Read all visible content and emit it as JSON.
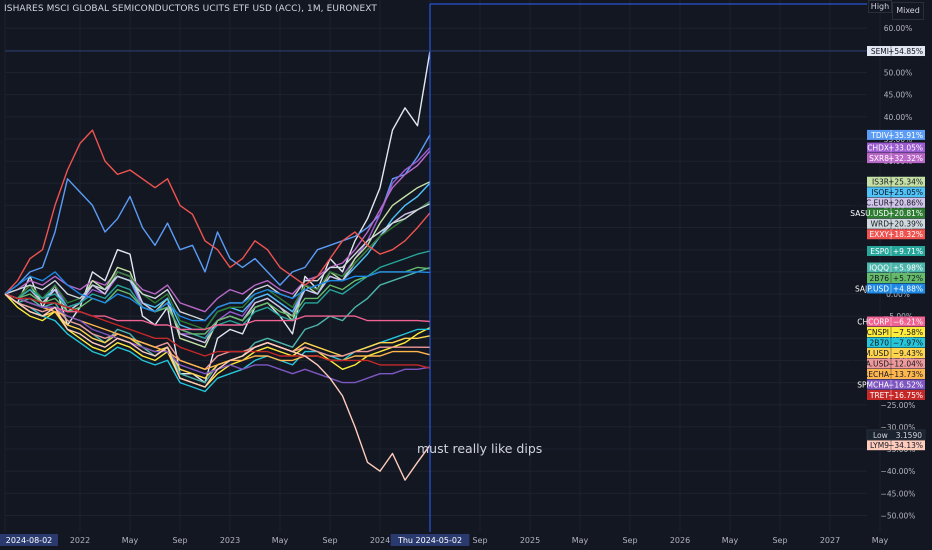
{
  "header": {
    "title": "ISHARES MSCI GLOBAL SEMICONDUCTORS UCITS ETF USD (ACC), 1M, EURONEXT",
    "high_label": "High",
    "mixed_label": "Mixed"
  },
  "annotation": "must really like dips",
  "colors": {
    "background": "#131722",
    "grid": "#1e222d",
    "axis_text": "#b2b5be",
    "crosshair": "#2962ff"
  },
  "chart_data": {
    "type": "line",
    "title": "ISHARES MSCI GLOBAL SEMICONDUCTORS UCITS ETF USD (ACC), 1M, EURONEXT",
    "ylabel": "",
    "xlabel": "",
    "ylim": [
      -52,
      65
    ],
    "x_tick_labels": [
      {
        "label": "2024-08-02",
        "i": 0,
        "highlight": true
      },
      {
        "label": "2022",
        "i": 6
      },
      {
        "label": "May",
        "i": 10
      },
      {
        "label": "Sep",
        "i": 14
      },
      {
        "label": "2023",
        "i": 18
      },
      {
        "label": "May",
        "i": 22
      },
      {
        "label": "Sep",
        "i": 26
      },
      {
        "label": "2024",
        "i": 30
      },
      {
        "label": "Thu 2024-05-02",
        "i": 34,
        "highlight": true
      },
      {
        "label": "Sep",
        "i": 38
      },
      {
        "label": "2025",
        "i": 42
      },
      {
        "label": "May",
        "i": 46
      },
      {
        "label": "Sep",
        "i": 50
      },
      {
        "label": "2026",
        "i": 54
      },
      {
        "label": "May",
        "i": 58
      },
      {
        "label": "Sep",
        "i": 62
      },
      {
        "label": "2027",
        "i": 66
      },
      {
        "label": "May",
        "i": 70
      }
    ],
    "y_ticks": [
      {
        "v": 60,
        "label": "60.00%"
      },
      {
        "v": 55,
        "label": "55.00%"
      },
      {
        "v": 50,
        "label": "50.00%"
      },
      {
        "v": 45,
        "label": "45.00%"
      },
      {
        "v": 40,
        "label": "40.00%"
      },
      {
        "v": 35,
        "label": "35.00%"
      },
      {
        "v": 30,
        "label": "30.00%"
      },
      {
        "v": 25,
        "label": "25.00%"
      },
      {
        "v": 20,
        "label": "20.00%"
      },
      {
        "v": 15,
        "label": "15.00%"
      },
      {
        "v": 10,
        "label": "10.00%"
      },
      {
        "v": 5,
        "label": "5.00%"
      },
      {
        "v": 0,
        "label": "0.00%"
      },
      {
        "v": -5,
        "label": "−5.00%"
      },
      {
        "v": -10,
        "label": "−10.00%"
      },
      {
        "v": -15,
        "label": "−15.00%"
      },
      {
        "v": -20,
        "label": "−20.00%"
      },
      {
        "v": -25,
        "label": "−25.00%"
      },
      {
        "v": -30,
        "label": "−30.00%"
      },
      {
        "v": -35,
        "label": "−35.00%"
      },
      {
        "v": -40,
        "label": "−40.00%"
      },
      {
        "v": -45,
        "label": "−45.00%"
      },
      {
        "v": -50,
        "label": "−50.00%"
      }
    ],
    "low_marker": {
      "label": "Low",
      "value": "3.1590",
      "v": -31.8
    },
    "series": [
      {
        "name": "SEMI",
        "value_label": "+54.85%",
        "last": 54.85,
        "color": "#e3e7f2",
        "values": [
          0,
          -2,
          4,
          -3,
          2,
          -7,
          -3,
          5,
          3,
          10,
          9,
          -5,
          -7,
          -3,
          -18,
          -18,
          -20,
          -10,
          -8,
          -9,
          -3,
          -2,
          -5,
          -9,
          4,
          1,
          8,
          5,
          12,
          17,
          24,
          37,
          42,
          38,
          54.85
        ]
      },
      {
        "name": "TDIV",
        "value_label": "+35.91%",
        "last": 35.91,
        "color": "#5b9cf6",
        "values": [
          0,
          2,
          5,
          6,
          14,
          26,
          23,
          20,
          14,
          17,
          22,
          15,
          11,
          16,
          10,
          11,
          5,
          14,
          8,
          6,
          8,
          5,
          2,
          5,
          6,
          10,
          11,
          12,
          13,
          15,
          18,
          26,
          27,
          31,
          35.91
        ]
      },
      {
        "name": "CHDX",
        "value_label": "+33.05%",
        "last": 33.05,
        "color": "#9c5bd1",
        "values": [
          0,
          -1,
          1,
          -1,
          2,
          -3,
          -2,
          1,
          0,
          4,
          3,
          -3,
          -4,
          -2,
          -9,
          -9,
          -10,
          -6,
          -4,
          -5,
          -1,
          0,
          -2,
          -4,
          2,
          1,
          5,
          4,
          8,
          12,
          18,
          25,
          28,
          30,
          33.05
        ]
      },
      {
        "name": "SXR8",
        "value_label": "+32.32%",
        "last": 32.32,
        "color": "#ba68c8",
        "values": [
          0,
          1,
          3,
          2,
          4,
          2,
          1,
          3,
          2,
          5,
          4,
          1,
          0,
          2,
          -2,
          -3,
          -4,
          -1,
          1,
          0,
          2,
          3,
          1,
          0,
          3,
          4,
          6,
          7,
          10,
          14,
          19,
          24,
          27,
          29,
          32.32
        ]
      },
      {
        "name": "IS3R",
        "value_label": "+25.34%",
        "last": 25.34,
        "color": "#c5e1a5",
        "values": [
          0,
          -1,
          2,
          -2,
          1,
          -4,
          -2,
          3,
          1,
          6,
          5,
          -2,
          -4,
          -1,
          -10,
          -11,
          -12,
          -6,
          -5,
          -6,
          -2,
          -1,
          -3,
          -6,
          2,
          0,
          5,
          3,
          8,
          11,
          16,
          20,
          22,
          24,
          25.34
        ]
      },
      {
        "name": "ISOE",
        "value_label": "+25.05%",
        "last": 25.05,
        "color": "#4fc3f7",
        "values": [
          0,
          -1,
          1,
          -1,
          1,
          -3,
          -2,
          2,
          1,
          4,
          3,
          -2,
          -3,
          -1,
          -7,
          -8,
          -8,
          -4,
          -3,
          -4,
          -1,
          0,
          -2,
          -4,
          1,
          0,
          4,
          3,
          6,
          9,
          13,
          17,
          20,
          22,
          25.05
        ]
      },
      {
        "name": "SLMC.EUR",
        "value_label": "+20.86%",
        "last": 20.86,
        "color": "#d1c4e9",
        "values": [
          0,
          -1,
          1,
          -2,
          1,
          -4,
          -2,
          2,
          0,
          5,
          4,
          -2,
          -4,
          -2,
          -9,
          -10,
          -11,
          -6,
          -5,
          -6,
          -2,
          -1,
          -3,
          -5,
          1,
          0,
          4,
          3,
          7,
          10,
          13,
          16,
          18,
          19,
          20.86
        ]
      },
      {
        "name": "SASU.USD",
        "value_label": "+20.81%",
        "last": 20.81,
        "color": "#2e7d32",
        "values": [
          0,
          -1,
          2,
          -1,
          2,
          -2,
          -1,
          2,
          1,
          5,
          4,
          0,
          -2,
          0,
          -6,
          -7,
          -8,
          -4,
          -3,
          -3,
          0,
          1,
          -1,
          -3,
          2,
          1,
          5,
          4,
          7,
          10,
          13,
          15,
          17,
          19,
          20.81
        ]
      },
      {
        "name": "WRD",
        "value_label": "+20.39%",
        "last": 20.39,
        "color": "#cfd8dc",
        "values": [
          0,
          1,
          2,
          1,
          3,
          0,
          -1,
          2,
          1,
          4,
          3,
          0,
          -1,
          1,
          -4,
          -5,
          -6,
          -3,
          -2,
          -2,
          1,
          2,
          0,
          -1,
          3,
          3,
          6,
          6,
          9,
          12,
          14,
          16,
          17,
          19,
          20.39
        ]
      },
      {
        "name": "EXXY",
        "value_label": "+18.32%",
        "last": 18.32,
        "color": "#ef5350",
        "values": [
          0,
          3,
          8,
          10,
          20,
          28,
          34,
          37,
          30,
          27,
          28,
          26,
          24,
          26,
          20,
          18,
          12,
          10,
          6,
          8,
          12,
          10,
          6,
          4,
          2,
          4,
          8,
          12,
          14,
          11,
          9,
          10,
          12,
          15,
          18.32
        ]
      },
      {
        "name": "ESP0",
        "value_label": "+9.71%",
        "last": 9.71,
        "color": "#26a69a",
        "values": [
          0,
          -1,
          1,
          -1,
          0,
          -3,
          -2,
          0,
          -1,
          2,
          1,
          -3,
          -4,
          -3,
          -8,
          -9,
          -10,
          -7,
          -6,
          -7,
          -4,
          -3,
          -5,
          -6,
          -2,
          -2,
          1,
          0,
          2,
          4,
          6,
          7,
          8,
          9,
          9.71
        ]
      },
      {
        "name": "IQQQ",
        "value_label": "+5.98%",
        "last": 5.98,
        "color": "#4db6ac",
        "values": [
          0,
          -2,
          -1,
          -3,
          -2,
          -6,
          -7,
          -9,
          -11,
          -8,
          -9,
          -12,
          -14,
          -12,
          -18,
          -19,
          -20,
          -16,
          -15,
          -14,
          -11,
          -10,
          -11,
          -12,
          -8,
          -7,
          -5,
          -6,
          -3,
          -1,
          2,
          3,
          4,
          5,
          5.98
        ]
      },
      {
        "name": "2B76",
        "value_label": "+5.72%",
        "last": 5.72,
        "color": "#66bb6a",
        "values": [
          0,
          -1,
          0,
          -2,
          -1,
          -4,
          -3,
          -1,
          -2,
          1,
          0,
          -3,
          -4,
          -3,
          -8,
          -9,
          -9,
          -6,
          -5,
          -6,
          -3,
          -2,
          -4,
          -5,
          -1,
          -1,
          2,
          1,
          3,
          4,
          5,
          5,
          5,
          6,
          5.72
        ]
      },
      {
        "name": "SAJP.USD",
        "value_label": "+4.88%",
        "last": 4.88,
        "color": "#1e88e5",
        "values": [
          0,
          2,
          4,
          3,
          5,
          2,
          0,
          -1,
          -2,
          0,
          -1,
          -3,
          -4,
          -2,
          -5,
          -6,
          -6,
          -3,
          -2,
          -2,
          0,
          1,
          0,
          -1,
          1,
          2,
          3,
          3,
          4,
          4,
          5,
          5,
          5,
          5,
          4.88
        ]
      },
      {
        "name": "CHCORP",
        "value_label": "−6.21%",
        "last": -6.21,
        "color": "#f06292",
        "values": [
          0,
          -1,
          -2,
          -3,
          -3,
          -4,
          -4,
          -5,
          -5,
          -6,
          -6,
          -6,
          -7,
          -7,
          -8,
          -8,
          -8,
          -7,
          -7,
          -7,
          -6,
          -6,
          -6,
          -6,
          -5,
          -5,
          -5,
          -5,
          -5,
          -6,
          -6,
          -6,
          -6,
          -6,
          -6.21
        ]
      },
      {
        "name": "CNSPI",
        "value_label": "−7.58%",
        "last": -7.58,
        "color": "#ffeb3b",
        "values": [
          0,
          -3,
          -5,
          -6,
          -4,
          -8,
          -10,
          -12,
          -13,
          -11,
          -12,
          -14,
          -15,
          -13,
          -19,
          -20,
          -21,
          -18,
          -16,
          -15,
          -13,
          -12,
          -13,
          -14,
          -12,
          -13,
          -15,
          -17,
          -16,
          -14,
          -13,
          -12,
          -11,
          -9,
          -7.58
        ]
      },
      {
        "name": "2B70",
        "value_label": "−7.97%",
        "last": -7.97,
        "color": "#26c6da",
        "values": [
          0,
          -2,
          -3,
          -5,
          -6,
          -9,
          -11,
          -13,
          -14,
          -12,
          -13,
          -15,
          -16,
          -15,
          -20,
          -21,
          -22,
          -19,
          -18,
          -17,
          -15,
          -14,
          -15,
          -16,
          -13,
          -13,
          -14,
          -15,
          -13,
          -12,
          -11,
          -10,
          -9,
          -8,
          -7.97
        ]
      },
      {
        "name": "SAEM.USD",
        "value_label": "−9.43%",
        "last": -9.43,
        "color": "#ffd54f",
        "values": [
          0,
          -2,
          -4,
          -5,
          -4,
          -7,
          -8,
          -10,
          -11,
          -9,
          -10,
          -12,
          -13,
          -12,
          -17,
          -18,
          -19,
          -16,
          -15,
          -14,
          -12,
          -11,
          -12,
          -13,
          -11,
          -12,
          -13,
          -14,
          -13,
          -12,
          -11,
          -11,
          -10,
          -10,
          -9.43
        ]
      },
      {
        "name": "EMSA.USD",
        "value_label": "−12.04%",
        "last": -12.04,
        "color": "#ef9a9a",
        "values": [
          0,
          -2,
          -3,
          -4,
          -3,
          -6,
          -7,
          -9,
          -10,
          -9,
          -10,
          -11,
          -12,
          -11,
          -15,
          -16,
          -17,
          -14,
          -13,
          -13,
          -12,
          -11,
          -12,
          -13,
          -12,
          -13,
          -14,
          -14,
          -13,
          -13,
          -12,
          -12,
          -12,
          -12,
          -12.04
        ]
      },
      {
        "name": "SRECHA",
        "value_label": "−13.73%",
        "last": -13.73,
        "color": "#ffb74d",
        "values": [
          0,
          -1,
          -2,
          -3,
          -4,
          -5,
          -6,
          -7,
          -8,
          -9,
          -10,
          -11,
          -12,
          -13,
          -15,
          -16,
          -17,
          -16,
          -15,
          -15,
          -14,
          -14,
          -15,
          -15,
          -14,
          -14,
          -15,
          -15,
          -14,
          -14,
          -14,
          -13,
          -13,
          -13,
          -13.73
        ]
      },
      {
        "name": "SPMCHA",
        "value_label": "−16.52%",
        "last": -16.52,
        "color": "#7e57c2",
        "values": [
          0,
          -1,
          -2,
          -3,
          -3,
          -5,
          -6,
          -8,
          -9,
          -10,
          -11,
          -12,
          -13,
          -13,
          -16,
          -17,
          -18,
          -17,
          -16,
          -17,
          -16,
          -16,
          -17,
          -18,
          -17,
          -18,
          -19,
          -20,
          -20,
          -19,
          -18,
          -18,
          -17,
          -17,
          -16.52
        ]
      },
      {
        "name": "TRET",
        "value_label": "−16.75%",
        "last": -16.75,
        "color": "#c62828",
        "values": [
          0,
          -1,
          -1,
          -2,
          -2,
          -3,
          -4,
          -5,
          -6,
          -7,
          -8,
          -9,
          -10,
          -10,
          -12,
          -13,
          -14,
          -13,
          -13,
          -13,
          -13,
          -13,
          -14,
          -14,
          -14,
          -14,
          -15,
          -15,
          -15,
          -15,
          -16,
          -16,
          -16,
          -16,
          -16.75
        ]
      },
      {
        "name": "LYM9",
        "value_label": "−34.13%",
        "last": -34.13,
        "color": "#ffccbc",
        "values": [
          0,
          -2,
          -4,
          -5,
          -3,
          -8,
          -9,
          -11,
          -12,
          -10,
          -11,
          -13,
          -14,
          -12,
          -19,
          -20,
          -21,
          -17,
          -15,
          -14,
          -12,
          -11,
          -12,
          -13,
          -14,
          -16,
          -19,
          -23,
          -30,
          -38,
          -40,
          -36,
          -42,
          -38,
          -34.13
        ]
      }
    ]
  }
}
